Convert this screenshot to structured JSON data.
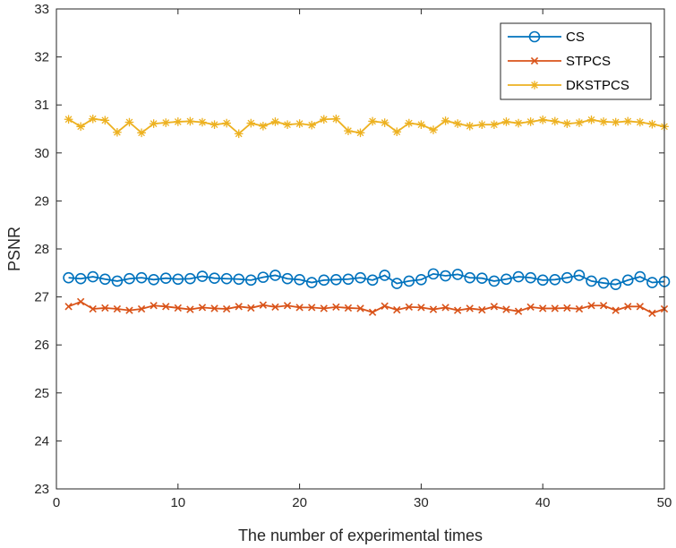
{
  "chart_data": {
    "type": "line",
    "title": "",
    "xlabel": "The number of experimental times",
    "ylabel": "PSNR",
    "xlim": [
      0,
      50
    ],
    "ylim": [
      23,
      33
    ],
    "xticks": [
      0,
      10,
      20,
      30,
      40,
      50
    ],
    "yticks": [
      23,
      24,
      25,
      26,
      27,
      28,
      29,
      30,
      31,
      32,
      33
    ],
    "grid": false,
    "legend_position": "top-right",
    "x": [
      1,
      2,
      3,
      4,
      5,
      6,
      7,
      8,
      9,
      10,
      11,
      12,
      13,
      14,
      15,
      16,
      17,
      18,
      19,
      20,
      21,
      22,
      23,
      24,
      25,
      26,
      27,
      28,
      29,
      30,
      31,
      32,
      33,
      34,
      35,
      36,
      37,
      38,
      39,
      40,
      41,
      42,
      43,
      44,
      45,
      46,
      47,
      48,
      49,
      50
    ],
    "series": [
      {
        "name": "CS",
        "color": "#0072BD",
        "marker": "circle",
        "values": [
          27.4,
          27.38,
          27.42,
          27.37,
          27.33,
          27.38,
          27.4,
          27.36,
          27.39,
          27.37,
          27.38,
          27.43,
          27.39,
          27.38,
          27.37,
          27.35,
          27.41,
          27.45,
          27.38,
          27.36,
          27.3,
          27.35,
          27.36,
          27.37,
          27.4,
          27.35,
          27.45,
          27.28,
          27.33,
          27.36,
          27.48,
          27.44,
          27.47,
          27.4,
          27.39,
          27.33,
          27.37,
          27.42,
          27.4,
          27.35,
          27.36,
          27.4,
          27.45,
          27.33,
          27.29,
          27.26,
          27.35,
          27.42,
          27.3,
          27.32
        ]
      },
      {
        "name": "STPCS",
        "color": "#D95319",
        "marker": "x",
        "values": [
          26.8,
          26.9,
          26.75,
          26.77,
          26.75,
          26.72,
          26.75,
          26.82,
          26.8,
          26.77,
          26.74,
          26.78,
          26.76,
          26.75,
          26.8,
          26.77,
          26.83,
          26.79,
          26.82,
          26.78,
          26.78,
          26.76,
          26.79,
          26.77,
          26.76,
          26.68,
          26.81,
          26.73,
          26.79,
          26.78,
          26.74,
          26.78,
          26.72,
          26.76,
          26.73,
          26.8,
          26.74,
          26.7,
          26.79,
          26.76,
          26.76,
          26.77,
          26.75,
          26.82,
          26.82,
          26.72,
          26.8,
          26.8,
          26.66,
          26.75
        ]
      },
      {
        "name": "DKSTPCS",
        "color": "#EDB120",
        "marker": "asterisk",
        "values": [
          30.7,
          30.55,
          30.71,
          30.68,
          30.43,
          30.64,
          30.42,
          30.61,
          30.63,
          30.65,
          30.66,
          30.64,
          30.59,
          30.62,
          30.4,
          30.62,
          30.56,
          30.65,
          30.59,
          30.61,
          30.58,
          30.7,
          30.71,
          30.46,
          30.42,
          30.66,
          30.63,
          30.44,
          30.62,
          30.59,
          30.48,
          30.67,
          30.61,
          30.56,
          30.59,
          30.59,
          30.65,
          30.62,
          30.65,
          30.69,
          30.66,
          30.61,
          30.63,
          30.69,
          30.65,
          30.64,
          30.66,
          30.64,
          30.6,
          30.55
        ]
      }
    ]
  }
}
